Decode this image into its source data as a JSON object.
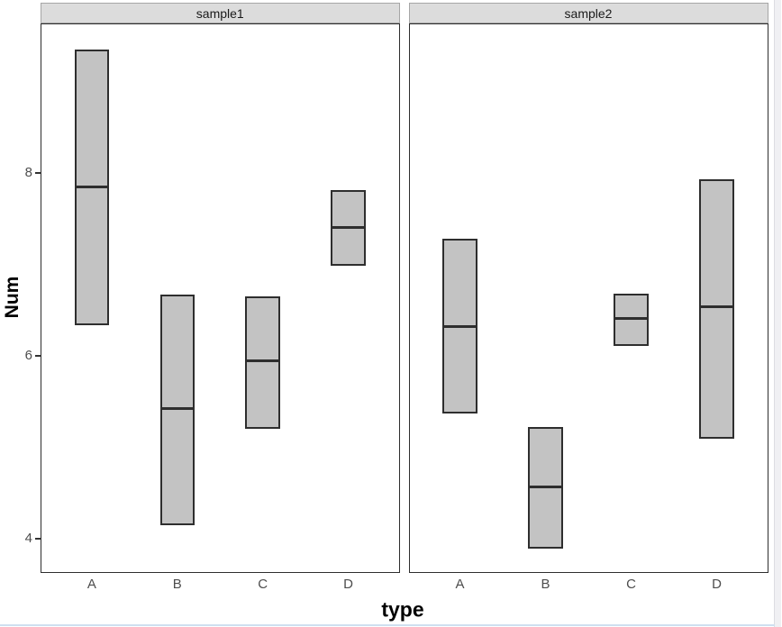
{
  "chart_data": {
    "type": "crossbar",
    "title": "",
    "xlabel": "type",
    "ylabel": "Num",
    "legend": "none",
    "grid": "off",
    "yticks": [
      4,
      6,
      8
    ],
    "ylim": [
      3.62,
      9.62
    ],
    "categories": [
      "A",
      "B",
      "C",
      "D"
    ],
    "facets": [
      {
        "label": "sample1",
        "bars": [
          {
            "category": "A",
            "ymin": 6.33,
            "mid": 7.85,
            "ymax": 9.36
          },
          {
            "category": "B",
            "ymin": 4.14,
            "mid": 5.42,
            "ymax": 6.67
          },
          {
            "category": "C",
            "ymin": 5.2,
            "mid": 5.94,
            "ymax": 6.65
          },
          {
            "category": "D",
            "ymin": 6.99,
            "mid": 7.41,
            "ymax": 7.82
          }
        ]
      },
      {
        "label": "sample2",
        "bars": [
          {
            "category": "A",
            "ymin": 5.37,
            "mid": 6.32,
            "ymax": 7.28
          },
          {
            "category": "B",
            "ymin": 3.89,
            "mid": 4.56,
            "ymax": 5.22
          },
          {
            "category": "C",
            "ymin": 6.11,
            "mid": 6.41,
            "ymax": 6.68
          },
          {
            "category": "D",
            "ymin": 5.09,
            "mid": 6.54,
            "ymax": 7.93
          }
        ]
      }
    ],
    "colors": {
      "bar_fill": "#c3c3c3",
      "bar_border": "#2e2e2e",
      "strip_bg": "#dcdcdc",
      "panel_border": "#2e2e2e",
      "tick_label": "#4d4d4d"
    }
  }
}
